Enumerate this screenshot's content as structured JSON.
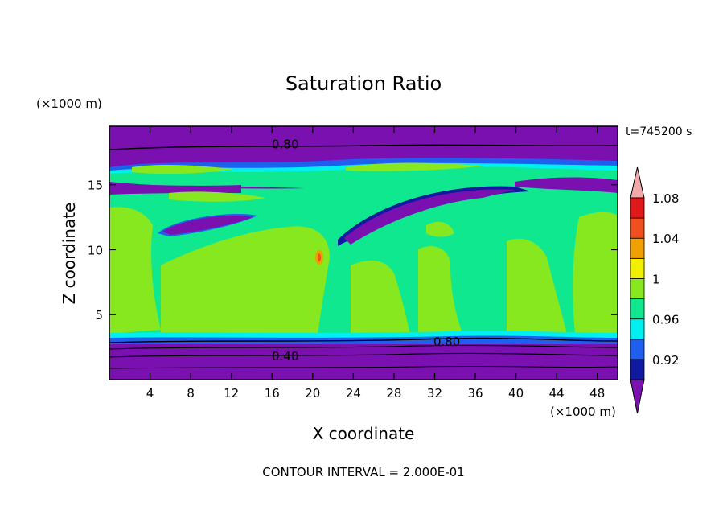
{
  "chart_data": {
    "type": "heatmap",
    "title": "Saturation Ratio",
    "xlabel": "X coordinate",
    "ylabel": "Z coordinate",
    "x_unit": "(×1000 m)",
    "z_unit": "(×1000 m)",
    "time_label": "t=745200 s",
    "footer": "CONTOUR INTERVAL = 2.000E-01",
    "xlim": [
      0,
      50
    ],
    "ylim": [
      0,
      19.5
    ],
    "xticks": [
      4,
      8,
      12,
      16,
      20,
      24,
      28,
      32,
      36,
      40,
      44,
      48
    ],
    "yticks": [
      5,
      10,
      15
    ],
    "contour_labels": [
      {
        "text": "0.80",
        "x": 17.3,
        "z": 18.1
      },
      {
        "text": "0.80",
        "x": 33.2,
        "z": 2.9
      },
      {
        "text": "0.40",
        "x": 17.3,
        "z": 1.8
      }
    ],
    "colorbar": {
      "levels": [
        0.92,
        0.94,
        0.96,
        0.98,
        1.0,
        1.02,
        1.04,
        1.06,
        1.08
      ],
      "tick_labels": [
        "0.92",
        "0.96",
        "1",
        "1.04",
        "1.08"
      ],
      "colors": [
        "#7a10b0",
        "#101aa0",
        "#1f5ff0",
        "#00f0f0",
        "#10e890",
        "#88e820",
        "#f0f000",
        "#f0a000",
        "#f05020",
        "#e01818",
        "#f0a8a8"
      ],
      "extend": "both"
    },
    "regions": [
      {
        "level": "< 0.92",
        "color": "#7a10b0",
        "z_range": [
          0,
          3.2
        ]
      },
      {
        "level": "< 0.92",
        "color": "#7a10b0",
        "z_range": [
          17.5,
          19.5
        ]
      },
      {
        "level": "0.98 – 1.0",
        "color": "#10e890",
        "z_range": [
          3.2,
          14.5
        ]
      },
      {
        "level": "1.0 – 1.02",
        "color": "#88e820",
        "z_range": [
          3.6,
          13.6
        ]
      }
    ]
  }
}
